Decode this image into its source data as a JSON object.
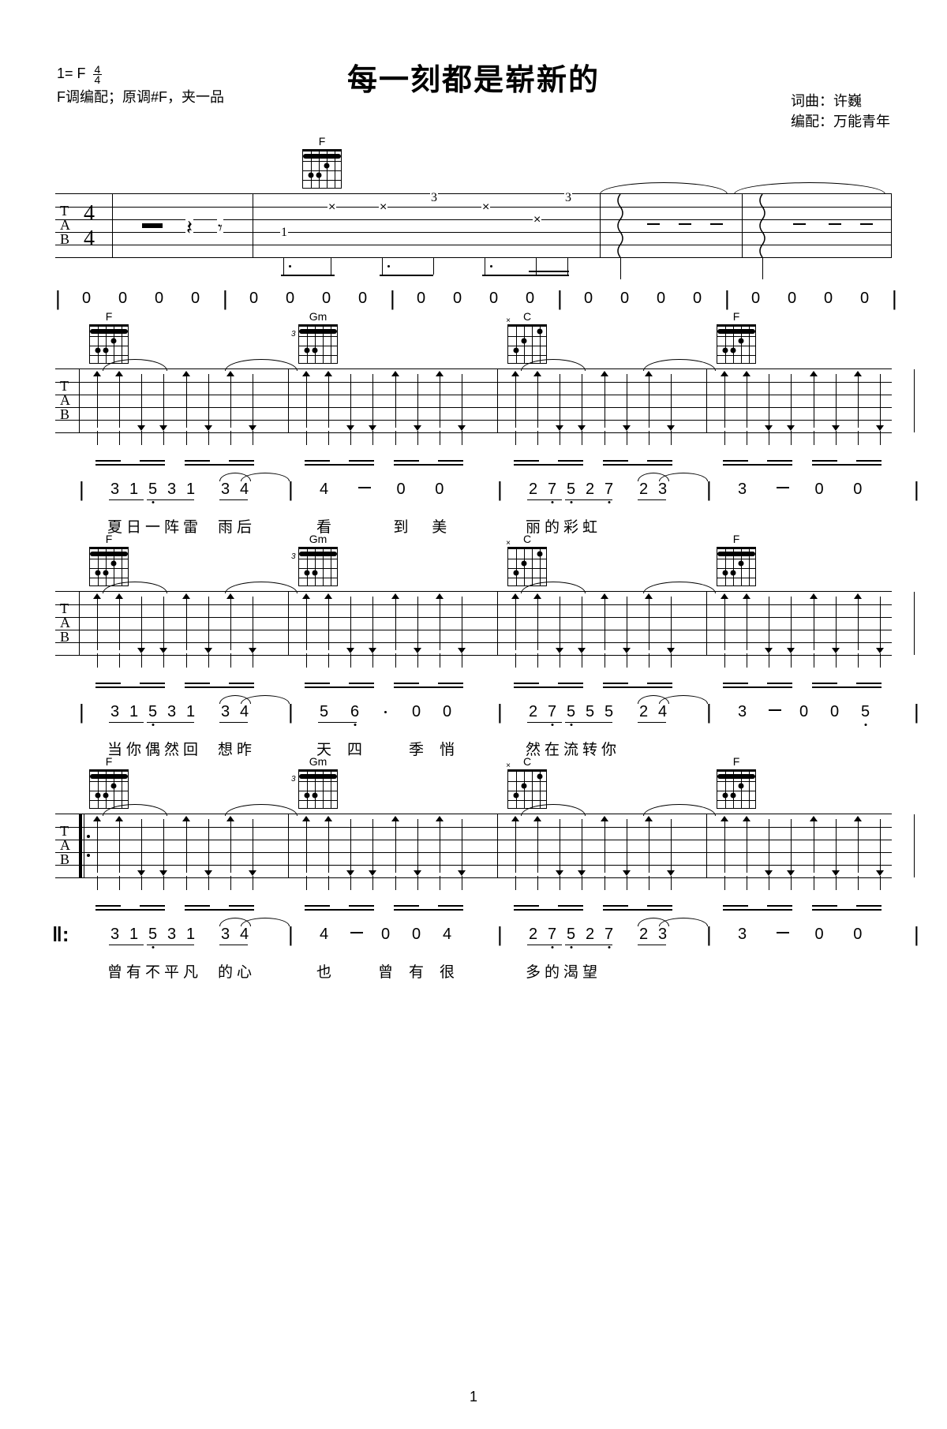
{
  "title": "每一刻都是崭新的",
  "key_line": "1= F",
  "time_sig": {
    "num": "4",
    "den": "4"
  },
  "arrangement_note": "F调编配；原调#F，夹一品",
  "credit_lyrics": "词曲：许巍",
  "credit_arr": "编配：万能青年",
  "page_number": "1",
  "chords": {
    "F": {
      "name": "F",
      "barre": true
    },
    "Gm": {
      "name": "Gm",
      "barre": true,
      "fret": "3"
    },
    "C": {
      "name": "C"
    }
  },
  "zero_bars": 5,
  "systems": [
    {
      "chord_seq": [
        "F",
        "Gm",
        "C",
        "F"
      ],
      "jianpu": [
        {
          "notes": "3 1 5 3 1   3 4",
          "bar": true
        },
        {
          "notes": "4  —  0  0",
          "bar": true
        },
        {
          "notes": "2 7 5 2 7   2 3",
          "bar": true
        },
        {
          "notes": "3  —  0  0",
          "bar": true
        }
      ],
      "lyrics": [
        "夏",
        "日",
        "一",
        "阵",
        "雷",
        "",
        "雨",
        "后",
        "",
        "",
        "",
        "",
        "看",
        "到",
        "美",
        "丽",
        "的",
        "",
        "彩",
        "虹"
      ]
    },
    {
      "chord_seq": [
        "F",
        "Gm",
        "C",
        "F"
      ],
      "jianpu": [
        {
          "notes": "3 1 5 3 1   3 4"
        },
        {
          "notes": "5 6 ·  0  0"
        },
        {
          "notes": "2 7  5 5 5 2 4"
        },
        {
          "notes": "3  —  0   0 5"
        }
      ],
      "lyrics": [
        "当",
        "你",
        "偶",
        "然",
        "回",
        "",
        "想",
        "昨",
        "",
        "天",
        "",
        "",
        "四",
        "季",
        "",
        "悄",
        "",
        "然",
        "在",
        "流",
        "",
        "转",
        "",
        "",
        "",
        "你"
      ]
    },
    {
      "chord_seq": [
        "F",
        "Gm",
        "C",
        "F"
      ],
      "jianpu": [
        {
          "notes": "3 1 5 3 1   3 4"
        },
        {
          "notes": "4  —  0   0 4"
        },
        {
          "notes": "2 7 5 2 7   2 3"
        },
        {
          "notes": "3  —  0  0"
        }
      ],
      "lyrics": [
        "曾",
        "有",
        "不",
        "平",
        "凡",
        "",
        "的",
        "心",
        "",
        "",
        "",
        "也",
        "",
        "曾",
        "有",
        "很",
        "多",
        "的",
        "",
        "渴",
        "望"
      ]
    }
  ]
}
